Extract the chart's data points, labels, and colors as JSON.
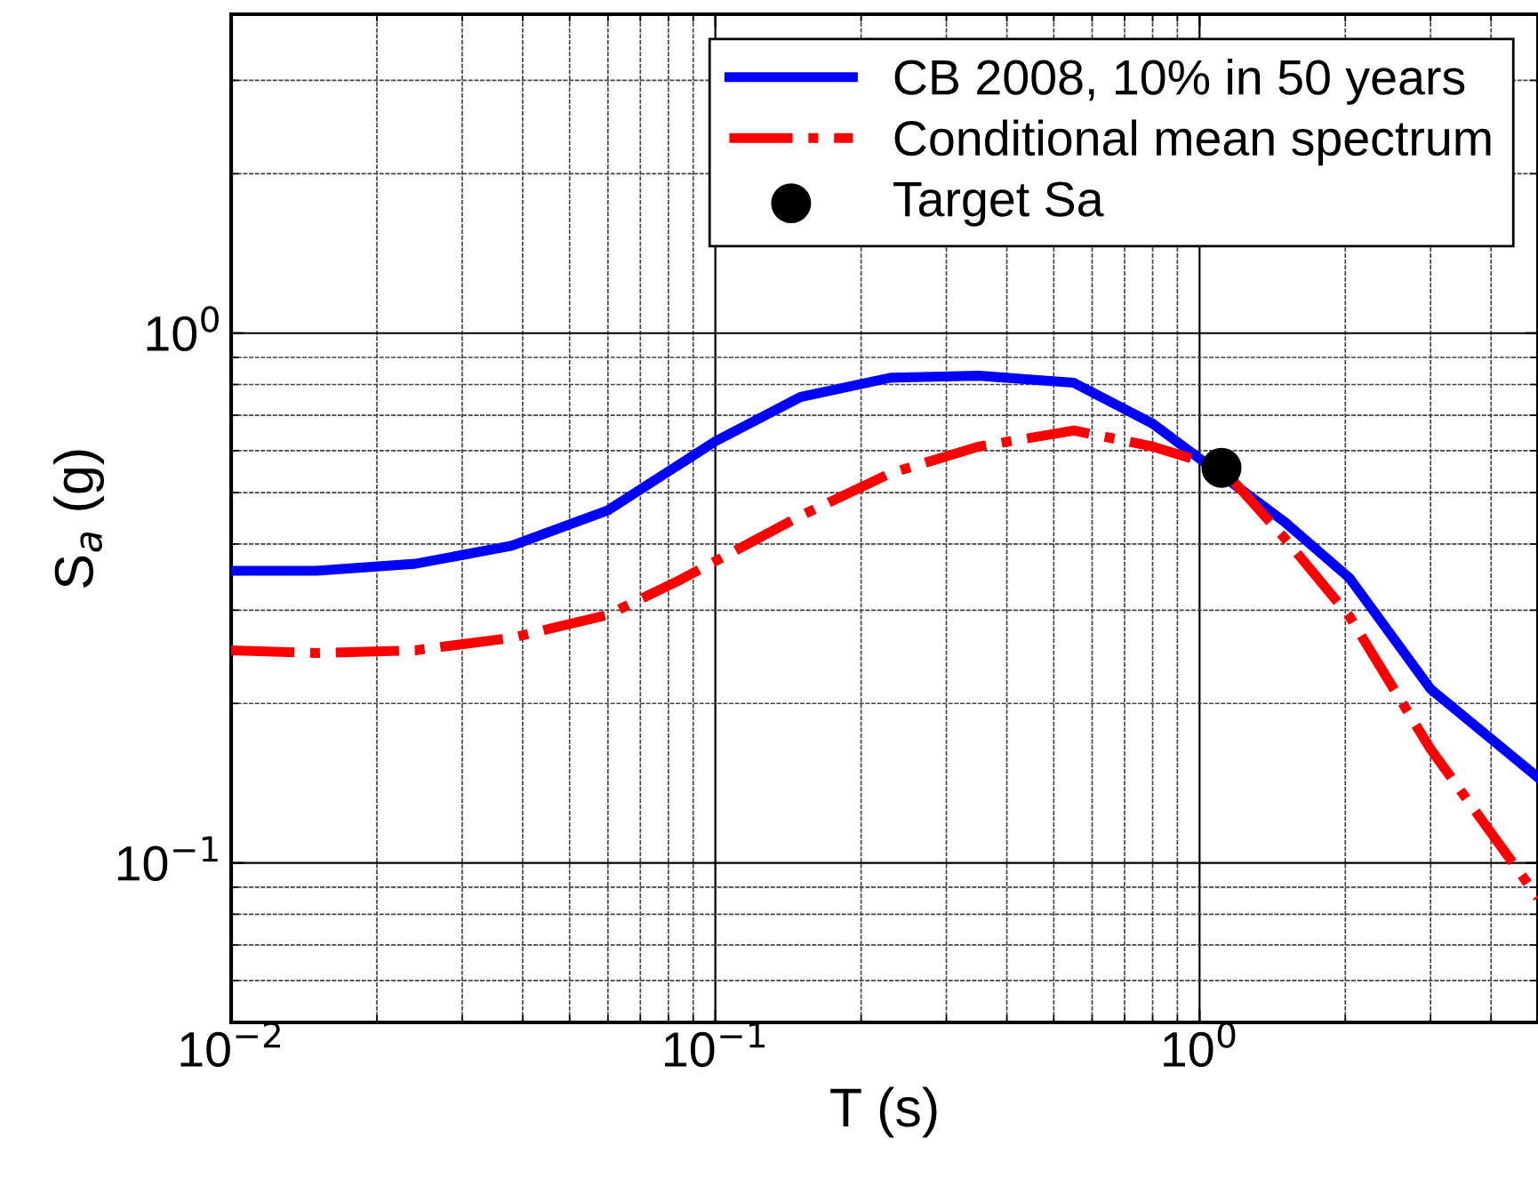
{
  "chart_data": {
    "type": "line",
    "xlabel": "T (s)",
    "ylabel": "S$_{a}$ (g)",
    "log": "xy",
    "grid": true,
    "legend": "top right",
    "xlim": [
      0.01,
      5
    ],
    "ylim": [
      0.05,
      4
    ],
    "xticks": [
      {
        "value": 0.01,
        "label": "10$^{−2}$"
      },
      {
        "value": 0.1,
        "label": "10$^{−1}$"
      },
      {
        "value": 1,
        "label": "10$^{0}$"
      }
    ],
    "yticks": [
      {
        "value": 0.1,
        "label": "10$^{−1}$"
      },
      {
        "value": 1,
        "label": "10$^{0}$"
      }
    ],
    "series": [
      {
        "name": "CB 2008, 10% in 50 years",
        "color": "#0000ff",
        "line_style": "solid",
        "x": [
          0.01,
          0.015,
          0.024,
          0.038,
          0.06,
          0.1,
          0.15,
          0.23,
          0.35,
          0.55,
          0.8,
          1.5,
          2.04,
          3,
          5
        ],
        "values": [
          0.356,
          0.356,
          0.367,
          0.397,
          0.463,
          0.625,
          0.758,
          0.824,
          0.831,
          0.806,
          0.675,
          0.44,
          0.345,
          0.213,
          0.145
        ]
      },
      {
        "name": "Conditional mean spectrum",
        "color": "#ff0000",
        "line_style": "dashdot",
        "x": [
          0.01,
          0.015,
          0.024,
          0.038,
          0.06,
          0.085,
          0.15,
          0.23,
          0.35,
          0.55,
          0.8,
          1.11,
          1.5,
          2.04,
          3,
          5
        ],
        "values": [
          0.252,
          0.249,
          0.252,
          0.266,
          0.294,
          0.343,
          0.452,
          0.544,
          0.611,
          0.655,
          0.611,
          0.557,
          0.41,
          0.292,
          0.164,
          0.086
        ]
      },
      {
        "name": "Target Sa",
        "type": "scatter",
        "color": "#000000",
        "marker": "circle",
        "x": [
          1.11
        ],
        "values": [
          0.557
        ]
      }
    ]
  }
}
